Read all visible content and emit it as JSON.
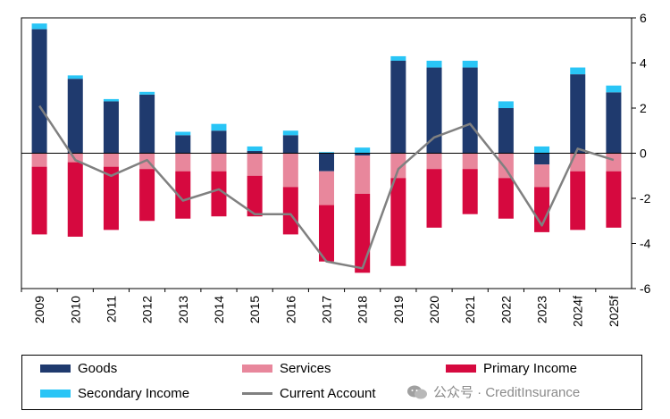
{
  "chart_data": {
    "type": "bar",
    "stacked": true,
    "categories": [
      "2009",
      "2010",
      "2011",
      "2012",
      "2013",
      "2014",
      "2015",
      "2016",
      "2017",
      "2018",
      "2019",
      "2020",
      "2021",
      "2022",
      "2023",
      "2024f",
      "2025f"
    ],
    "series": [
      {
        "name": "Goods",
        "color": "#1f3a6e",
        "kind": "bar",
        "values": [
          5.5,
          3.3,
          2.3,
          2.6,
          0.8,
          1.0,
          0.1,
          0.8,
          -0.8,
          -0.1,
          4.1,
          3.8,
          3.8,
          2.0,
          -0.5,
          3.5,
          2.7
        ]
      },
      {
        "name": "Services",
        "color": "#e8879c",
        "kind": "bar",
        "values": [
          -0.6,
          -0.4,
          -0.6,
          -0.7,
          -0.8,
          -0.8,
          -1.0,
          -1.5,
          -1.5,
          -1.7,
          -1.1,
          -0.7,
          -0.7,
          -1.1,
          -1.0,
          -0.8,
          -0.8
        ]
      },
      {
        "name": "Primary Income",
        "color": "#d6093f",
        "kind": "bar",
        "values": [
          -3.0,
          -3.3,
          -2.8,
          -2.3,
          -2.1,
          -2.0,
          -1.8,
          -2.1,
          -2.5,
          -3.5,
          -3.9,
          -2.6,
          -2.0,
          -1.8,
          -2.0,
          -2.6,
          -2.5
        ]
      },
      {
        "name": "Secondary Income",
        "color": "#29c5f6",
        "kind": "bar",
        "values": [
          0.25,
          0.15,
          0.1,
          0.12,
          0.15,
          0.3,
          0.2,
          0.2,
          0.05,
          0.25,
          0.2,
          0.3,
          0.3,
          0.3,
          0.3,
          0.3,
          0.3
        ]
      },
      {
        "name": "Current Account",
        "color": "#808080",
        "kind": "line",
        "values": [
          2.1,
          -0.3,
          -1.0,
          -0.3,
          -2.1,
          -1.6,
          -2.7,
          -2.7,
          -4.8,
          -5.1,
          -0.7,
          0.7,
          1.3,
          -0.7,
          -3.2,
          0.2,
          -0.3
        ]
      }
    ],
    "ylim": [
      -6,
      6
    ],
    "yticks": [
      -6,
      -4,
      -2,
      0,
      2,
      4,
      6
    ],
    "y_axis_side": "right",
    "grid": false,
    "legend": "bottom"
  },
  "watermark": {
    "text": "公众号 · CreditInsurance"
  }
}
